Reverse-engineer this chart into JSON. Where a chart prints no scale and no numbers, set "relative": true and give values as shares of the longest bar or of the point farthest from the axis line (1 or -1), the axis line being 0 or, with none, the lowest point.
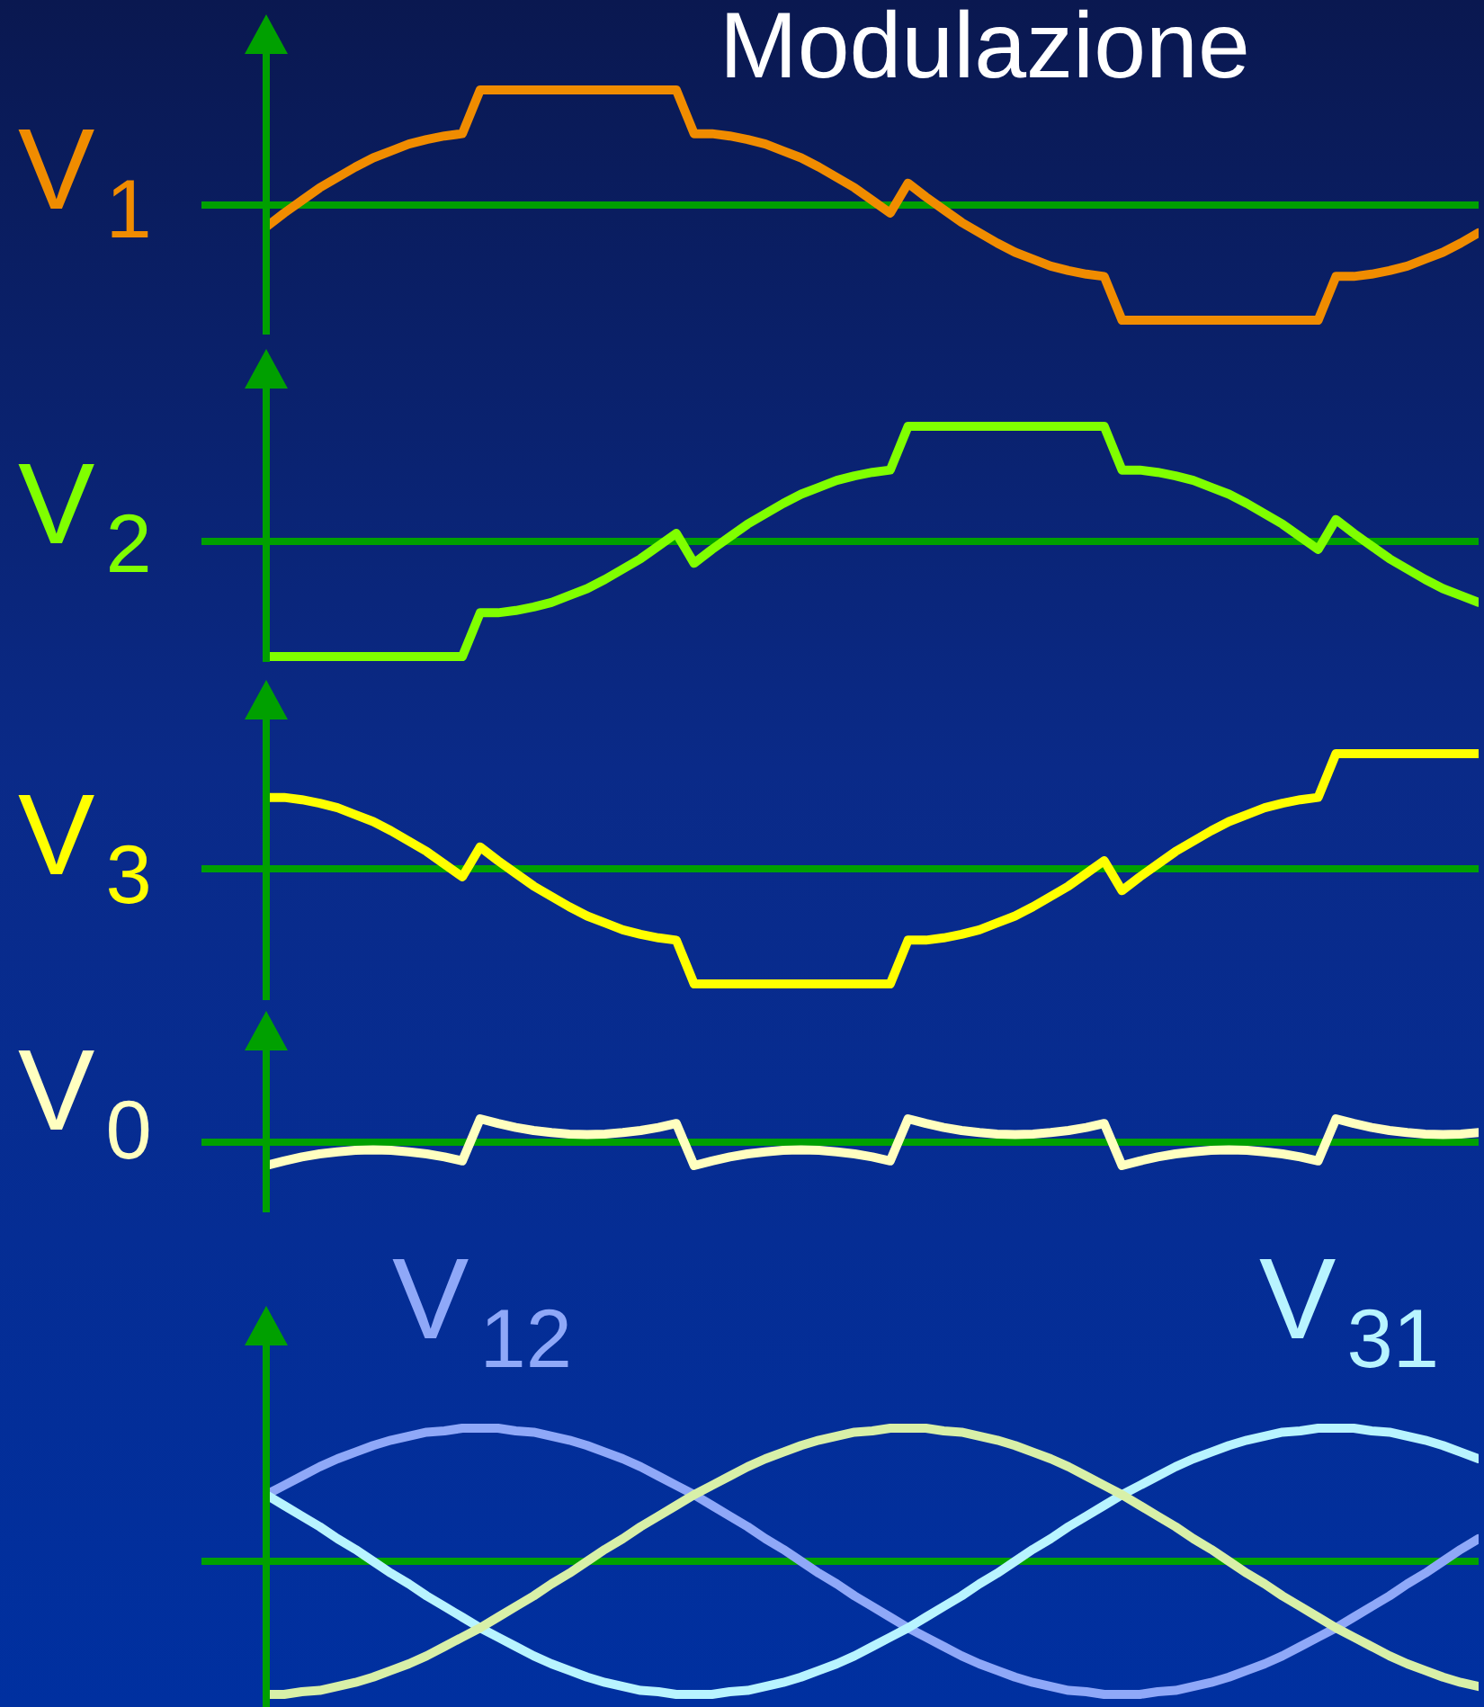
{
  "chart_data": [
    {
      "type": "line",
      "title": "Modulazione",
      "relative": true,
      "ref_lines": [
        {
          "axis": "y",
          "value": 0,
          "color": "#00a000"
        }
      ],
      "categories": [
        null,
        null,
        null,
        null,
        null,
        null,
        null,
        null,
        null,
        null,
        null,
        null,
        null,
        null,
        null,
        null,
        null,
        null,
        null,
        null,
        null,
        null,
        null,
        null,
        null,
        null,
        null,
        null,
        null,
        null,
        null,
        null,
        null,
        null,
        null,
        null,
        null,
        null,
        null,
        null,
        null,
        null,
        null,
        null,
        null,
        null,
        null,
        null,
        null,
        null,
        null,
        null,
        null,
        null,
        null,
        null,
        null,
        null,
        null,
        null,
        null,
        null,
        null,
        null,
        null,
        null,
        null,
        null,
        null
      ],
      "series": [
        {
          "name": "V$_{1}$",
          "color": "#f08c00",
          "values": [
            -0.19,
            -0.07,
            0.04,
            0.15,
            0.24,
            0.33,
            0.41,
            0.47,
            0.53,
            0.57,
            0.6,
            0.62,
            1,
            1,
            1,
            1,
            1,
            1,
            1,
            1,
            1,
            1,
            1,
            1,
            0.62,
            0.62,
            0.6,
            0.57,
            0.53,
            0.47,
            0.41,
            0.33,
            0.24,
            0.15,
            0.04,
            -0.07,
            0.19,
            0.07,
            -0.04,
            -0.15,
            -0.24,
            -0.33,
            -0.41,
            -0.47,
            -0.53,
            -0.57,
            -0.6,
            -0.62,
            -1,
            -1,
            -1,
            -1,
            -1,
            -1,
            -1,
            -1,
            -1,
            -1,
            -1,
            -1,
            -0.62,
            -0.62,
            -0.6,
            -0.57,
            -0.53,
            -0.47,
            -0.41,
            -0.33,
            -0.24
          ]
        }
      ]
    },
    {
      "type": "line",
      "relative": true,
      "categories": [
        null,
        null,
        null,
        null,
        null,
        null,
        null,
        null,
        null,
        null,
        null,
        null,
        null,
        null,
        null,
        null,
        null,
        null,
        null,
        null,
        null,
        null,
        null,
        null,
        null,
        null,
        null,
        null,
        null,
        null,
        null,
        null,
        null,
        null,
        null,
        null,
        null,
        null,
        null,
        null,
        null,
        null,
        null,
        null,
        null,
        null,
        null,
        null,
        null,
        null,
        null,
        null,
        null,
        null,
        null,
        null,
        null,
        null,
        null,
        null,
        null,
        null,
        null,
        null,
        null,
        null,
        null,
        null,
        null
      ],
      "ref_lines": [
        {
          "axis": "y",
          "value": 0,
          "color": "#00a000"
        }
      ],
      "series": [
        {
          "name": "V$_{2}$",
          "color": "#80ff00",
          "values": [
            -1,
            -1,
            -1,
            -1,
            -1,
            -1,
            -1,
            -1,
            -1,
            -1,
            -1,
            -1,
            -0.62,
            -0.62,
            -0.6,
            -0.57,
            -0.53,
            -0.47,
            -0.41,
            -0.33,
            -0.24,
            -0.15,
            -0.04,
            0.07,
            -0.19,
            -0.07,
            0.04,
            0.15,
            0.24,
            0.33,
            0.41,
            0.47,
            0.53,
            0.57,
            0.6,
            0.62,
            1,
            1,
            1,
            1,
            1,
            1,
            1,
            1,
            1,
            1,
            1,
            1,
            0.62,
            0.62,
            0.6,
            0.57,
            0.53,
            0.47,
            0.41,
            0.33,
            0.24,
            0.15,
            0.04,
            -0.07,
            0.19,
            0.07,
            -0.04,
            -0.15,
            -0.24,
            -0.33,
            -0.41,
            -0.47,
            -0.53
          ]
        }
      ]
    },
    {
      "type": "line",
      "relative": true,
      "categories": [
        null,
        null,
        null,
        null,
        null,
        null,
        null,
        null,
        null,
        null,
        null,
        null,
        null,
        null,
        null,
        null,
        null,
        null,
        null,
        null,
        null,
        null,
        null,
        null,
        null,
        null,
        null,
        null,
        null,
        null,
        null,
        null,
        null,
        null,
        null,
        null,
        null,
        null,
        null,
        null,
        null,
        null,
        null,
        null,
        null,
        null,
        null,
        null,
        null,
        null,
        null,
        null,
        null,
        null,
        null,
        null,
        null,
        null,
        null,
        null,
        null,
        null,
        null,
        null,
        null,
        null,
        null,
        null,
        null
      ],
      "ref_lines": [
        {
          "axis": "y",
          "value": 0,
          "color": "#00a000"
        }
      ],
      "series": [
        {
          "name": "V$_{3}$",
          "color": "#ffff00",
          "values": [
            0.62,
            0.62,
            0.6,
            0.57,
            0.53,
            0.47,
            0.41,
            0.33,
            0.24,
            0.15,
            0.04,
            -0.07,
            0.19,
            0.07,
            -0.04,
            -0.15,
            -0.24,
            -0.33,
            -0.41,
            -0.47,
            -0.53,
            -0.57,
            -0.6,
            -0.62,
            -1,
            -1,
            -1,
            -1,
            -1,
            -1,
            -1,
            -1,
            -1,
            -1,
            -1,
            -1,
            -0.62,
            -0.62,
            -0.6,
            -0.57,
            -0.53,
            -0.47,
            -0.41,
            -0.33,
            -0.24,
            -0.15,
            -0.04,
            0.07,
            -0.19,
            -0.07,
            0.04,
            0.15,
            0.24,
            0.33,
            0.41,
            0.47,
            0.53,
            0.57,
            0.6,
            0.62,
            1,
            1,
            1,
            1,
            1,
            1,
            1,
            1,
            1
          ]
        }
      ]
    },
    {
      "type": "line",
      "relative": true,
      "categories": [
        null,
        null,
        null,
        null,
        null,
        null,
        null,
        null,
        null,
        null,
        null,
        null,
        null,
        null,
        null,
        null,
        null,
        null,
        null,
        null,
        null,
        null,
        null,
        null,
        null,
        null,
        null,
        null,
        null,
        null,
        null,
        null,
        null,
        null,
        null,
        null,
        null,
        null,
        null,
        null,
        null,
        null,
        null,
        null,
        null,
        null,
        null,
        null,
        null,
        null,
        null,
        null,
        null,
        null,
        null,
        null,
        null,
        null,
        null,
        null,
        null,
        null,
        null,
        null,
        null,
        null,
        null,
        null,
        null
      ],
      "ref_lines": [
        {
          "axis": "y",
          "value": 0,
          "color": "#00a000"
        }
      ],
      "series": [
        {
          "name": "V$_{0}$",
          "color": "#ffffc0",
          "values": [
            -1,
            -0.8,
            -0.63,
            -0.5,
            -0.41,
            -0.35,
            -0.33,
            -0.35,
            -0.41,
            -0.5,
            -0.63,
            -0.8,
            1,
            0.8,
            0.63,
            0.5,
            0.41,
            0.35,
            0.33,
            0.35,
            0.41,
            0.5,
            0.63,
            0.8,
            -1,
            -0.8,
            -0.63,
            -0.5,
            -0.41,
            -0.35,
            -0.33,
            -0.35,
            -0.41,
            -0.5,
            -0.63,
            -0.8,
            1,
            0.8,
            0.63,
            0.5,
            0.41,
            0.35,
            0.33,
            0.35,
            0.41,
            0.5,
            0.63,
            0.8,
            -1,
            -0.8,
            -0.63,
            -0.5,
            -0.41,
            -0.35,
            -0.33,
            -0.35,
            -0.41,
            -0.5,
            -0.63,
            -0.8,
            1,
            0.8,
            0.63,
            0.5,
            0.41,
            0.35,
            0.33,
            0.35,
            0.41
          ]
        }
      ]
    },
    {
      "type": "line",
      "relative": true,
      "categories": [
        null,
        null,
        null,
        null,
        null,
        null,
        null,
        null,
        null,
        null,
        null,
        null,
        null,
        null,
        null,
        null,
        null,
        null,
        null,
        null,
        null,
        null,
        null,
        null,
        null,
        null,
        null,
        null,
        null,
        null,
        null,
        null,
        null,
        null,
        null,
        null,
        null,
        null,
        null,
        null,
        null,
        null,
        null,
        null,
        null,
        null,
        null,
        null,
        null,
        null,
        null,
        null,
        null,
        null,
        null,
        null,
        null,
        null,
        null,
        null,
        null,
        null,
        null,
        null,
        null,
        null,
        null,
        null,
        null
      ],
      "ref_lines": [
        {
          "axis": "y",
          "value": 0,
          "color": "#00a000"
        }
      ],
      "series": [
        {
          "name": "V$_{12}$",
          "color": "#8fa8f8",
          "values": [
            0.5,
            0.57,
            0.64,
            0.71,
            0.77,
            0.82,
            0.87,
            0.91,
            0.94,
            0.97,
            0.98,
            1,
            1,
            1,
            0.98,
            0.97,
            0.94,
            0.91,
            0.87,
            0.82,
            0.77,
            0.71,
            0.64,
            0.57,
            0.5,
            0.42,
            0.34,
            0.26,
            0.17,
            0.09,
            0,
            -0.09,
            -0.17,
            -0.26,
            -0.34,
            -0.42,
            -0.5,
            -0.57,
            -0.64,
            -0.71,
            -0.77,
            -0.82,
            -0.87,
            -0.91,
            -0.94,
            -0.97,
            -0.98,
            -1,
            -1,
            -1,
            -0.98,
            -0.97,
            -0.94,
            -0.91,
            -0.87,
            -0.82,
            -0.77,
            -0.71,
            -0.64,
            -0.57,
            -0.5,
            -0.42,
            -0.34,
            -0.26,
            -0.17,
            -0.09,
            0,
            0.09,
            0.17
          ]
        },
        {
          "name": "V$_{31}$",
          "color": "#b8f4ff",
          "values": [
            0.5,
            0.42,
            0.34,
            0.26,
            0.17,
            0.09,
            0,
            -0.09,
            -0.17,
            -0.26,
            -0.34,
            -0.42,
            -0.5,
            -0.57,
            -0.64,
            -0.71,
            -0.77,
            -0.82,
            -0.87,
            -0.91,
            -0.94,
            -0.97,
            -0.98,
            -1,
            -1,
            -1,
            -0.98,
            -0.97,
            -0.94,
            -0.91,
            -0.87,
            -0.82,
            -0.77,
            -0.71,
            -0.64,
            -0.57,
            -0.5,
            -0.42,
            -0.34,
            -0.26,
            -0.17,
            -0.09,
            0,
            0.09,
            0.17,
            0.26,
            0.34,
            0.42,
            0.5,
            0.57,
            0.64,
            0.71,
            0.77,
            0.82,
            0.87,
            0.91,
            0.94,
            0.97,
            0.98,
            1,
            1,
            1,
            0.98,
            0.97,
            0.94,
            0.91,
            0.87,
            0.82,
            0.77
          ]
        },
        {
          "color": "#d8f0a8",
          "values": [
            -1,
            -1,
            -0.98,
            -0.97,
            -0.94,
            -0.91,
            -0.87,
            -0.82,
            -0.77,
            -0.71,
            -0.64,
            -0.57,
            -0.5,
            -0.42,
            -0.34,
            -0.26,
            -0.17,
            -0.09,
            0,
            0.09,
            0.17,
            0.26,
            0.34,
            0.42,
            0.5,
            0.57,
            0.64,
            0.71,
            0.77,
            0.82,
            0.87,
            0.91,
            0.94,
            0.97,
            0.98,
            1,
            1,
            1,
            0.98,
            0.97,
            0.94,
            0.91,
            0.87,
            0.82,
            0.77,
            0.71,
            0.64,
            0.57,
            0.5,
            0.42,
            0.34,
            0.26,
            0.17,
            0.09,
            0,
            -0.09,
            -0.17,
            -0.26,
            -0.34,
            -0.42,
            -0.5,
            -0.57,
            -0.64,
            -0.71,
            -0.77,
            -0.82,
            -0.87,
            -0.91,
            -0.94
          ]
        }
      ]
    }
  ]
}
